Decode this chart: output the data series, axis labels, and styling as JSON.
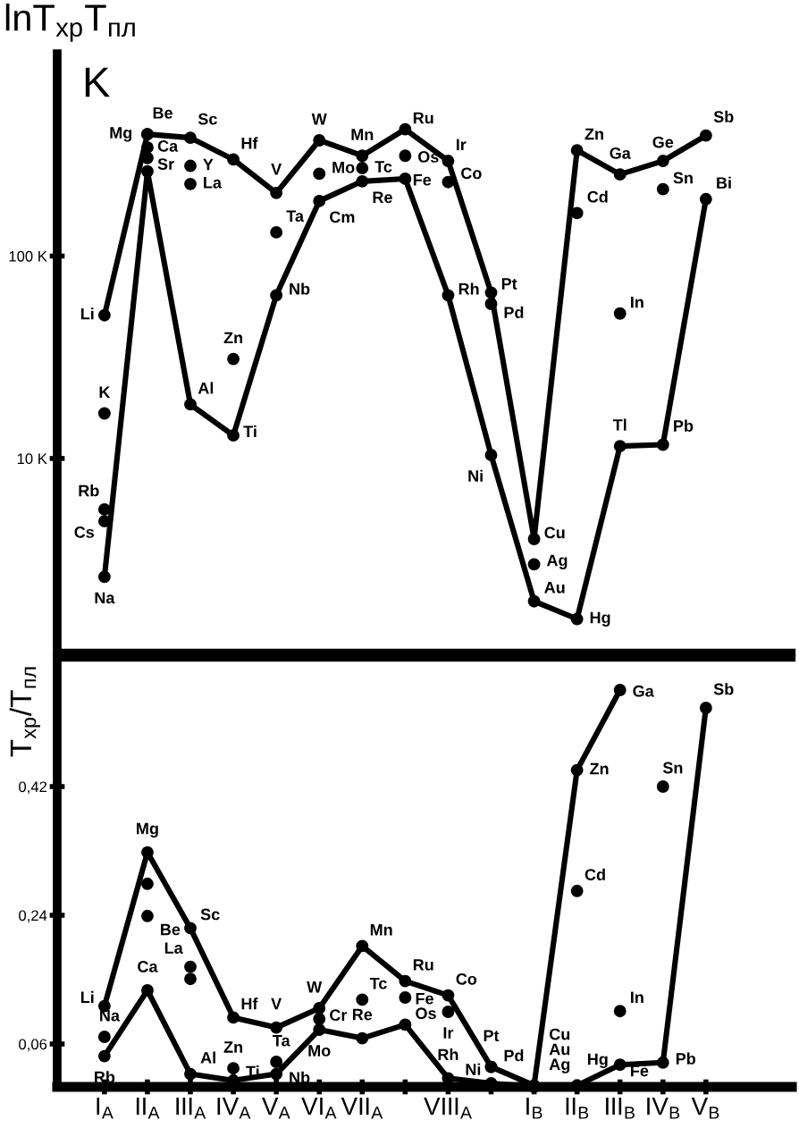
{
  "chart_data": [
    {
      "type": "line",
      "title": "lnT$_{хр}$T$_{пл}$",
      "ylabel": "K",
      "log": true,
      "marker": "circle",
      "line_style": "solid",
      "tick_labels": "y",
      "categories": [
        null,
        null,
        null,
        null,
        null,
        null,
        null,
        null,
        null,
        null,
        null,
        null,
        null,
        null,
        null
      ],
      "ylim": [
        1.1,
        1000
      ],
      "yticks": [
        {
          "value": 10,
          "label": "10 K"
        },
        {
          "value": 100,
          "label": "100 K"
        }
      ],
      "series": [
        {
          "color": "#000000",
          "values": [
            51,
            400,
            384,
            300,
            205,
            373,
            313,
            423,
            295,
            66,
            4.0,
            333,
            253,
            295,
            394
          ],
          "value_labels": [
            "Li",
            "Be",
            "Sc",
            "Hf",
            "V",
            "W",
            "Mn",
            "Ru",
            "Ir",
            "Pt",
            "Cu",
            "Zn",
            "Ga",
            "Ge",
            "Sb"
          ]
        },
        {
          "color": "#000000",
          "values": [
            2.6,
            262,
            18.5,
            13,
            64,
            187,
            234,
            241,
            64,
            10.4,
            1.97,
            1.61,
            11.5,
            11.7,
            191
          ],
          "value_labels": [
            "Na",
            null,
            "Al",
            "Ti",
            "Nb",
            "Cm",
            "Re",
            "Fe",
            "Rh",
            "Ni",
            "Au",
            "Hg",
            "Tl",
            "Pb",
            "Bi"
          ]
        },
        {
          "type": "scatter",
          "color": "#000000",
          "values": [
            16.7,
            400,
            279,
            31,
            131,
            255,
            272,
            313,
            232,
            58,
            3.0,
            163,
            52,
            214,
            null
          ],
          "value_labels": [
            "K",
            "Mg",
            "Y",
            "Zn",
            "Ta",
            "Mo",
            "Tc",
            "Os",
            "Co",
            "Pd",
            "Ag",
            "Cd",
            "In",
            "Sn",
            null
          ]
        },
        {
          "type": "scatter",
          "color": "#000000",
          "values": [
            5.6,
            344,
            227,
            null,
            null,
            null,
            null,
            null,
            null,
            null,
            null,
            null,
            null,
            null,
            null
          ],
          "value_labels": [
            "Rb",
            "Ca",
            "La",
            null,
            null,
            null,
            null,
            null,
            null,
            null,
            null,
            null,
            null,
            null,
            null
          ]
        },
        {
          "type": "scatter",
          "color": "#000000",
          "values": [
            4.9,
            305,
            null,
            null,
            null,
            null,
            null,
            null,
            null,
            null,
            null,
            null,
            null,
            null,
            null
          ],
          "value_labels": [
            "Cs",
            "Sr",
            null,
            null,
            null,
            null,
            null,
            null,
            null,
            null,
            null,
            null,
            null,
            null,
            null
          ]
        }
      ]
    },
    {
      "type": "line",
      "ylabel": "T$_{хр}$/T$_{пл}$",
      "marker": "circle",
      "line_style": "solid",
      "categories": [
        "I$_{A}$",
        "II$_{A}$",
        "III$_{A}$",
        "IV$_{A}$",
        "V$_{A}$",
        "VI$_{A}$",
        "VII$_{A}$",
        null,
        "VIII$_{A}$",
        null,
        "I$_{B}$",
        "II$_{B}$",
        "III$_{B}$",
        "IV$_{B}$",
        "V$_{B}$"
      ],
      "ylim": [
        0,
        0.6
      ],
      "yticks": [
        {
          "value": 0.06,
          "label": "0,06"
        },
        {
          "value": 0.24,
          "label": "0,24"
        },
        {
          "value": 0.42,
          "label": "0,42"
        }
      ],
      "series": [
        {
          "color": "#000000",
          "values": [
            0.113,
            0.328,
            0.222,
            0.097,
            0.083,
            0.11,
            0.197,
            0.148,
            0.128,
            0.028,
            0.002,
            0.443,
            0.555,
            null,
            null
          ],
          "value_labels": [
            "Li",
            "Mg",
            "Sc",
            "Hf",
            "V",
            "W",
            "Mn",
            "Ru",
            "Co",
            "Pt",
            "Cu\nAu\nAg",
            "Zn",
            "Ga",
            null,
            null
          ]
        },
        {
          "color": "#000000",
          "values": [
            0.043,
            0.135,
            0.018,
            0.009,
            0.018,
            0.08,
            0.068,
            0.087,
            0.012,
            0.005,
            0,
            0.002,
            0.031,
            0.034,
            0.53
          ],
          "value_labels": [
            "Rb",
            "Ca",
            "Al",
            "Ti",
            "Nb",
            "Mo",
            "Re",
            "Os",
            "Rh",
            "Ni",
            null,
            "Hg",
            "Fe",
            "Pb",
            "Sb"
          ]
        },
        {
          "type": "scatter",
          "color": "#000000",
          "values": [
            0.07,
            0.284,
            0.168,
            0.026,
            0.035,
            0.095,
            0.122,
            0.125,
            0.105,
            0.028,
            null,
            0.274,
            0.106,
            0.42,
            null
          ],
          "value_labels": [
            "Na",
            null,
            "La",
            "Zn",
            "Ta",
            "Cr",
            "Tc",
            "Fe",
            "Ir",
            "Pd",
            null,
            "Cd",
            "In",
            "Sn",
            null
          ]
        },
        {
          "type": "scatter",
          "color": "#000000",
          "values": [
            null,
            0.239,
            0.151,
            null,
            null,
            null,
            null,
            null,
            null,
            null,
            null,
            null,
            null,
            null,
            null
          ],
          "value_labels": [
            null,
            "Be",
            null,
            null,
            null,
            null,
            null,
            null,
            null,
            null,
            null,
            null,
            null,
            null,
            null
          ]
        }
      ]
    }
  ]
}
